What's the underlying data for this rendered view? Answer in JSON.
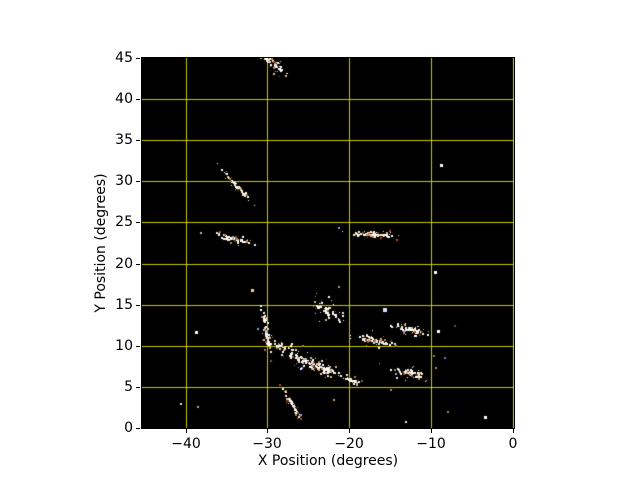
{
  "page": {
    "background": "#ffffff",
    "text_color": "#000000"
  },
  "chart_data": {
    "type": "scatter",
    "title": "",
    "xlabel": "X Position (degrees)",
    "ylabel": "Y Position (degrees)",
    "xlim": [
      -45.32,
      0.15
    ],
    "ylim": [
      0,
      45
    ],
    "plot_background": "#000000",
    "grid": {
      "color": "#c9c900",
      "x_values": [
        -40,
        -30,
        -20,
        -10,
        0
      ],
      "y_values": [
        5,
        10,
        15,
        20,
        25,
        30,
        35,
        40
      ]
    },
    "xticks": {
      "values": [
        -40,
        -30,
        -20,
        -10,
        0
      ],
      "labels": [
        "−40",
        "−30",
        "−20",
        "−10",
        "0"
      ]
    },
    "yticks": {
      "values": [
        0,
        5,
        10,
        15,
        20,
        25,
        30,
        35,
        40,
        45
      ],
      "labels": [
        "0",
        "5",
        "10",
        "15",
        "20",
        "25",
        "30",
        "35",
        "40",
        "45"
      ]
    },
    "seed": 1234,
    "point_palette": [
      [
        "#ffffff",
        0.26
      ],
      [
        "#f4e6c8",
        0.22
      ],
      [
        "#dcb684",
        0.18
      ],
      [
        "#b9824e",
        0.14
      ],
      [
        "#8a5a2e",
        0.09
      ],
      [
        "#5c3a18",
        0.05
      ],
      [
        "#8caaff",
        0.03
      ],
      [
        "#c04818",
        0.03
      ]
    ],
    "core_palette": [
      "#ffffff",
      "#ffffff",
      "#f8f0e2"
    ],
    "clusters": [
      {
        "name": "cluster-top-edge",
        "cx": -29.3,
        "cy": 44.3,
        "n": 60,
        "sig_major": 1.1,
        "sig_minor": 0.4,
        "angle_deg": -38
      },
      {
        "name": "streak-upper-left",
        "cx": -33.8,
        "cy": 29.5,
        "n": 55,
        "sig_major": 1.25,
        "sig_minor": 0.16,
        "angle_deg": -47
      },
      {
        "name": "cluster-left-23",
        "cx": -34.2,
        "cy": 23.0,
        "n": 60,
        "sig_major": 1.3,
        "sig_minor": 0.3,
        "angle_deg": -14
      },
      {
        "name": "cluster-mid-23",
        "cx": -16.9,
        "cy": 23.5,
        "n": 85,
        "sig_major": 1.5,
        "sig_minor": 0.25,
        "angle_deg": -3
      },
      {
        "name": "cluster-vertical-30",
        "cx": -30.1,
        "cy": 11.9,
        "n": 60,
        "sig_major": 1.5,
        "sig_minor": 0.28,
        "angle_deg": -80
      },
      {
        "name": "cluster-h-28-10",
        "cx": -28.3,
        "cy": 9.9,
        "n": 40,
        "sig_major": 0.9,
        "sig_minor": 0.28,
        "angle_deg": -13
      },
      {
        "name": "band-central",
        "cx": -24.3,
        "cy": 7.7,
        "n": 150,
        "sig_major": 2.0,
        "sig_minor": 0.55,
        "angle_deg": -21
      },
      {
        "name": "knot-19-6",
        "cx": -19.4,
        "cy": 5.7,
        "n": 25,
        "sig_major": 0.6,
        "sig_minor": 0.25,
        "angle_deg": -15
      },
      {
        "name": "cluster-17-11",
        "cx": -16.9,
        "cy": 10.6,
        "n": 70,
        "sig_major": 1.3,
        "sig_minor": 0.35,
        "angle_deg": -9
      },
      {
        "name": "cluster-12-12",
        "cx": -12.5,
        "cy": 12.0,
        "n": 60,
        "sig_major": 1.2,
        "sig_minor": 0.35,
        "angle_deg": -14
      },
      {
        "name": "cluster-12-7",
        "cx": -12.5,
        "cy": 6.6,
        "n": 75,
        "sig_major": 1.3,
        "sig_minor": 0.4,
        "angle_deg": -12
      },
      {
        "name": "cloud-22-14",
        "cx": -22.7,
        "cy": 14.2,
        "n": 55,
        "sig_major": 1.0,
        "sig_minor": 0.7,
        "angle_deg": -30
      },
      {
        "name": "streak-bottom",
        "cx": -26.9,
        "cy": 2.8,
        "n": 55,
        "sig_major": 1.3,
        "sig_minor": 0.25,
        "angle_deg": -60
      }
    ],
    "stars": [
      {
        "x": -8.7,
        "y": 31.9,
        "color": "#ffffff",
        "size": 3
      },
      {
        "x": -9.4,
        "y": 18.9,
        "color": "#ffffff",
        "size": 3
      },
      {
        "x": -15.6,
        "y": 14.3,
        "color": "#d8e4ff",
        "size": 4
      },
      {
        "x": -38.7,
        "y": 11.6,
        "color": "#ffffff",
        "size": 3
      },
      {
        "x": -31.8,
        "y": 16.7,
        "color": "#f0d2a0",
        "size": 3
      },
      {
        "x": -40.5,
        "y": 2.9,
        "color": "#e8e0d0",
        "size": 2
      },
      {
        "x": -38.5,
        "y": 2.6,
        "color": "#cfa070",
        "size": 2
      },
      {
        "x": -21.9,
        "y": 3.4,
        "color": "#cfa070",
        "size": 2
      },
      {
        "x": -21.3,
        "y": 17.2,
        "color": "#c09870",
        "size": 2
      },
      {
        "x": -14.9,
        "y": 4.6,
        "color": "#b98f60",
        "size": 2
      },
      {
        "x": -13.0,
        "y": 0.7,
        "color": "#f0f0e8",
        "size": 2
      },
      {
        "x": -7.9,
        "y": 1.9,
        "color": "#b08050",
        "size": 2
      },
      {
        "x": -3.3,
        "y": 1.3,
        "color": "#ffffff",
        "size": 3
      },
      {
        "x": -9.1,
        "y": 11.7,
        "color": "#ffffff",
        "size": 3
      },
      {
        "x": -9.6,
        "y": 8.7,
        "color": "#a07040",
        "size": 2
      },
      {
        "x": -9.4,
        "y": 7.3,
        "color": "#c08050",
        "size": 2
      },
      {
        "x": -8.3,
        "y": 8.5,
        "color": "#6080c8",
        "size": 2
      },
      {
        "x": -21.3,
        "y": 24.3,
        "color": "#78a0ff",
        "size": 2
      },
      {
        "x": -31.2,
        "y": 12.0,
        "color": "#78a0ff",
        "size": 2
      },
      {
        "x": -7.1,
        "y": 12.4,
        "color": "#44598c",
        "size": 2
      }
    ]
  }
}
